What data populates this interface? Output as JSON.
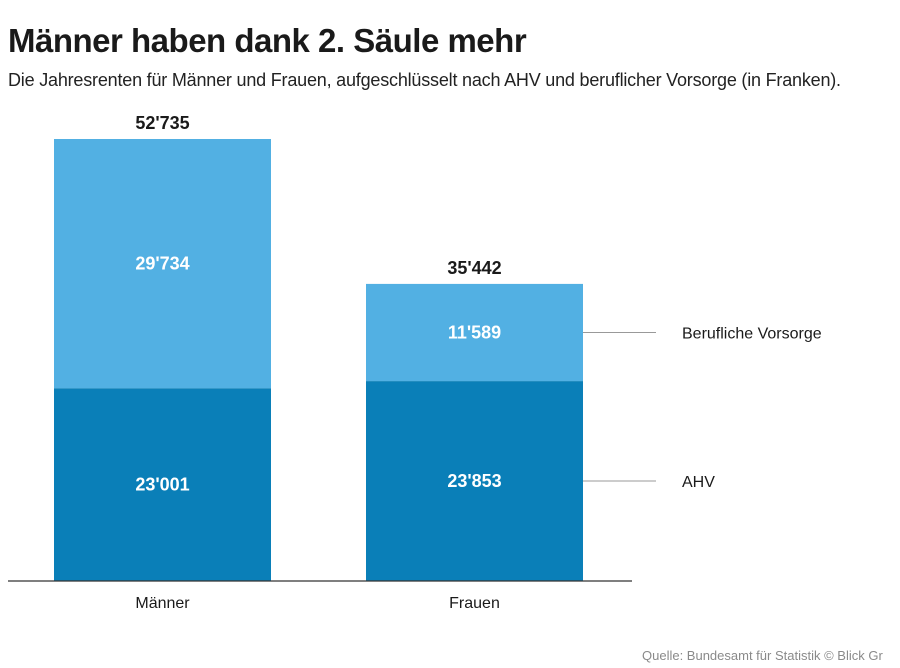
{
  "header": {
    "title": "Männer haben dank 2. Säule mehr",
    "subtitle": "Die Jahresrenten für Männer und Frauen, aufgeschlüsselt nach AHV und beruflicher Vorsorge (in Franken)."
  },
  "footer": {
    "source": "Quelle: Bundesamt für Statistik © Blick Gr"
  },
  "colors": {
    "ahv": "#0a7fb8",
    "berufliche_vorsorge": "#52b0e3",
    "text_dark": "#1a1a1a",
    "label_on_bar": "#ffffff",
    "axis": "#333333",
    "leader_line": "#999999"
  },
  "chart_data": {
    "type": "bar",
    "stacked": true,
    "title": "Männer haben dank 2. Säule mehr",
    "subtitle": "Die Jahresrenten für Männer und Frauen, aufgeschlüsselt nach AHV und beruflicher Vorsorge (in Franken).",
    "xlabel": "",
    "ylabel": "",
    "categories": [
      "Männer",
      "Frauen"
    ],
    "series": [
      {
        "name": "AHV",
        "values": [
          23001,
          23853
        ],
        "labels": [
          "23'001",
          "23'853"
        ]
      },
      {
        "name": "Berufliche Vorsorge",
        "values": [
          29734,
          11589
        ],
        "labels": [
          "29'734",
          "11'589"
        ]
      }
    ],
    "totals": [
      52735,
      35442
    ],
    "total_labels": [
      "52'735",
      "35'442"
    ],
    "ylim": [
      0,
      52735
    ],
    "grid": false,
    "legend": "right, as direct labels"
  }
}
